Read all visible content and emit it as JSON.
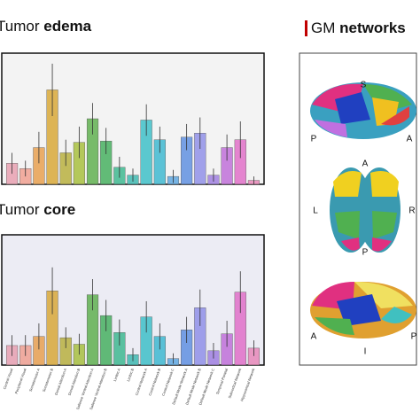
{
  "chart_data": [
    {
      "type": "bar",
      "title": "Tumor",
      "title_bold": "edema",
      "values": [
        16,
        12,
        28,
        72,
        24,
        32,
        50,
        33,
        13,
        7,
        49,
        34,
        6,
        36,
        39,
        7,
        28,
        34,
        3
      ],
      "errors": [
        8,
        6,
        12,
        20,
        10,
        12,
        12,
        10,
        8,
        5,
        12,
        10,
        5,
        10,
        12,
        5,
        10,
        14,
        3
      ],
      "colors": [
        "#e8a0b0",
        "#f0a090",
        "#e8a050",
        "#d8a838",
        "#b8b040",
        "#a8c040",
        "#60b050",
        "#48b060",
        "#40b890",
        "#40b8b0",
        "#40c0c8",
        "#40b8d0",
        "#60a8e0",
        "#6090e0",
        "#9090e8",
        "#a080e0",
        "#c070d8",
        "#e070c8",
        "#e888b8"
      ],
      "ylim": [
        0,
        100
      ]
    },
    {
      "type": "bar",
      "title": "Tumor",
      "title_bold": "core",
      "categories": [
        "Central Visual",
        "Peripheral Visual",
        "Somatomotor A",
        "Somatomotor B",
        "Dorsal Attention A",
        "Dorsal Attention B",
        "Salience Ventral Attention A",
        "Salience Ventral Attention B",
        "Limbic A",
        "Limbic B",
        "Control Network A",
        "Control Network B",
        "Control Network C",
        "Default Mode Network A",
        "Default Mode Network B",
        "Default Mode Network C",
        "Temporal Parietal",
        "Subcortical Network",
        "Hippocampal Network"
      ],
      "values": [
        15,
        15,
        22,
        57,
        21,
        16,
        54,
        38,
        25,
        8,
        37,
        22,
        5,
        27,
        44,
        11,
        24,
        56,
        13
      ],
      "errors": [
        8,
        8,
        10,
        18,
        8,
        8,
        12,
        12,
        10,
        5,
        12,
        10,
        4,
        10,
        14,
        6,
        10,
        16,
        6
      ],
      "colors": [
        "#e8a0b0",
        "#f0a090",
        "#e8a050",
        "#d8a838",
        "#b8b040",
        "#a8c040",
        "#60b050",
        "#48b060",
        "#40b890",
        "#40b8b0",
        "#40c0c8",
        "#40b8d0",
        "#60a8e0",
        "#6090e0",
        "#9090e8",
        "#a080e0",
        "#c070d8",
        "#e070c8",
        "#e888b8"
      ],
      "ylim": [
        0,
        100
      ]
    }
  ],
  "panel": {
    "title": "GM",
    "title_bold": "networks",
    "view_labels": [
      "S",
      "P",
      "A",
      "A",
      "L",
      "R",
      "P",
      "A",
      "I",
      "P"
    ]
  }
}
